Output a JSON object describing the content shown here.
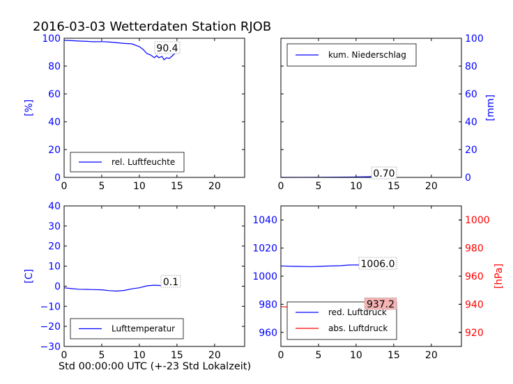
{
  "title": "2016-03-03 Wetterdaten Station RJOB",
  "footer_xlabel": "Std 00:00:00 UTC (+-23 Std Lokalzeit)",
  "colors": {
    "blue": "#0000ff",
    "red": "#ff0000",
    "axis": "#000000",
    "value_box_red": "#f5b3b3"
  },
  "chart_data": [
    {
      "id": "humidity",
      "type": "line",
      "xlim": [
        0,
        24
      ],
      "ylim": [
        0,
        100
      ],
      "xticks": [
        "0",
        "5",
        "10",
        "15",
        "20"
      ],
      "yticks": [
        "0",
        "20",
        "40",
        "60",
        "80",
        "100"
      ],
      "ylabel": "[%]",
      "ylabel_side": "left",
      "legend": "bottom-left",
      "series": [
        {
          "name": "rel. Luftfeuchte",
          "color": "#0000ff",
          "x": [
            0,
            1,
            2,
            3,
            4,
            5,
            6,
            7,
            8,
            9,
            10,
            10.5,
            11,
            11.5,
            12,
            12.3,
            12.6,
            13,
            13.3,
            13.6,
            14,
            14.3,
            14.6,
            15
          ],
          "y": [
            98.5,
            98.3,
            98,
            97.8,
            97.5,
            97.6,
            97.3,
            96.8,
            96.3,
            96,
            94,
            92,
            89,
            88,
            86,
            87.5,
            86,
            87,
            84.5,
            86,
            85.5,
            87,
            88.5,
            90.4
          ]
        }
      ],
      "value_label": "90.4"
    },
    {
      "id": "precipitation",
      "type": "line",
      "xlim": [
        0,
        24
      ],
      "ylim": [
        0,
        100
      ],
      "xticks": [
        "0",
        "5",
        "10",
        "15",
        "20"
      ],
      "yticks": [
        "0",
        "20",
        "40",
        "60",
        "80",
        "100"
      ],
      "ylabel": "[mm]",
      "ylabel_side": "right",
      "legend": "top-left",
      "series": [
        {
          "name": "kum. Niederschlag",
          "color": "#0000ff",
          "x": [
            0,
            5,
            10,
            12,
            15
          ],
          "y": [
            0,
            0.1,
            0.3,
            0.5,
            0.7
          ]
        }
      ],
      "value_label": "0.70"
    },
    {
      "id": "temperature",
      "type": "line",
      "xlim": [
        0,
        24
      ],
      "ylim": [
        -30,
        40
      ],
      "xticks": [
        "0",
        "5",
        "10",
        "15",
        "20"
      ],
      "yticks": [
        "−30",
        "−20",
        "−10",
        "0",
        "10",
        "20",
        "30",
        "40"
      ],
      "ylabel": "[C]",
      "ylabel_side": "left",
      "legend": "bottom-left",
      "series": [
        {
          "name": "Lufttemperatur",
          "color": "#0000ff",
          "x": [
            0,
            1,
            2,
            3,
            4,
            5,
            6,
            7,
            8,
            9,
            10,
            11,
            12,
            13,
            14,
            15
          ],
          "y": [
            -0.8,
            -1.2,
            -1.5,
            -1.6,
            -1.7,
            -1.8,
            -2.2,
            -2.4,
            -2.1,
            -1.3,
            -0.8,
            0.2,
            0.5,
            0.3,
            0.4,
            0.1
          ]
        }
      ],
      "value_label": "0.1"
    },
    {
      "id": "pressure",
      "type": "line",
      "xlim": [
        0,
        24
      ],
      "ylim": [
        950,
        1050
      ],
      "ylim_right": [
        910,
        1010
      ],
      "xticks": [
        "0",
        "5",
        "10",
        "15",
        "20"
      ],
      "yticks": [
        "960",
        "980",
        "1000",
        "1020",
        "1040"
      ],
      "yticks_right": [
        "920",
        "940",
        "960",
        "980",
        "1000"
      ],
      "ylabel_right": "[hPa]",
      "legend": "bottom-left",
      "series": [
        {
          "name": "red. Luftdruck",
          "color": "#0000ff",
          "axis": "left",
          "x": [
            0,
            2,
            4,
            5,
            6,
            8,
            9,
            10,
            12,
            15
          ],
          "y": [
            1007.3,
            1007,
            1006.8,
            1007,
            1007.2,
            1007.5,
            1007.9,
            1008,
            1007.8,
            1006.0
          ]
        },
        {
          "name": "abs. Luftdruck",
          "color": "#ff0000",
          "axis": "right",
          "x": [
            0,
            2,
            4,
            6,
            8,
            10,
            12,
            15
          ],
          "y": [
            938.3,
            937.8,
            937.6,
            937.7,
            938.1,
            938.4,
            938.2,
            937.2
          ]
        }
      ],
      "value_label_left": "1006.0",
      "value_label_right": "937.2"
    }
  ]
}
